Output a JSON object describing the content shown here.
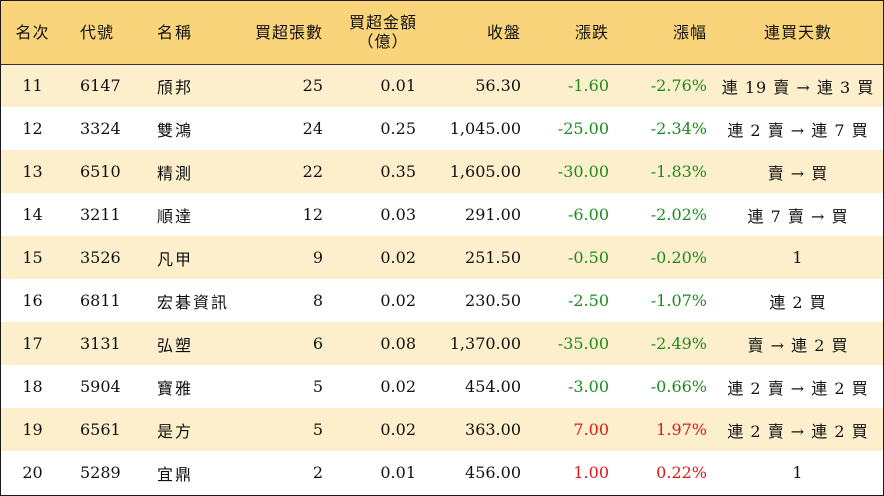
{
  "headers": {
    "rank": "名次",
    "code": "代號",
    "name": "名稱",
    "net_buy_lots": "買超張數",
    "net_buy_amount_line1": "買超金額",
    "net_buy_amount_line2": "（億）",
    "close": "收盤",
    "change": "漲跌",
    "change_pct": "漲幅",
    "consecutive_days": "連買天數"
  },
  "colors": {
    "header_bg": "#f9d47a",
    "odd_row_bg": "#fdefcc",
    "even_row_bg": "#ffffff",
    "down": "#1e8a1e",
    "up": "#e01818"
  },
  "rows": [
    {
      "rank": "11",
      "code": "6147",
      "name": "頎邦",
      "lots": "25",
      "amount": "0.01",
      "close": "56.30",
      "change": "-1.60",
      "pct": "-2.76%",
      "days": "連 19 賣 → 連 3 買",
      "dir": "down"
    },
    {
      "rank": "12",
      "code": "3324",
      "name": "雙鴻",
      "lots": "24",
      "amount": "0.25",
      "close": "1,045.00",
      "change": "-25.00",
      "pct": "-2.34%",
      "days": "連 2 賣 → 連 7 買",
      "dir": "down"
    },
    {
      "rank": "13",
      "code": "6510",
      "name": "精測",
      "lots": "22",
      "amount": "0.35",
      "close": "1,605.00",
      "change": "-30.00",
      "pct": "-1.83%",
      "days": "賣 → 買",
      "dir": "down"
    },
    {
      "rank": "14",
      "code": "3211",
      "name": "順達",
      "lots": "12",
      "amount": "0.03",
      "close": "291.00",
      "change": "-6.00",
      "pct": "-2.02%",
      "days": "連 7 賣 → 買",
      "dir": "down"
    },
    {
      "rank": "15",
      "code": "3526",
      "name": "凡甲",
      "lots": "9",
      "amount": "0.02",
      "close": "251.50",
      "change": "-0.50",
      "pct": "-0.20%",
      "days": "1",
      "dir": "down"
    },
    {
      "rank": "16",
      "code": "6811",
      "name": "宏碁資訊",
      "lots": "8",
      "amount": "0.02",
      "close": "230.50",
      "change": "-2.50",
      "pct": "-1.07%",
      "days": "連 2 買",
      "dir": "down"
    },
    {
      "rank": "17",
      "code": "3131",
      "name": "弘塑",
      "lots": "6",
      "amount": "0.08",
      "close": "1,370.00",
      "change": "-35.00",
      "pct": "-2.49%",
      "days": "賣 → 連 2 買",
      "dir": "down"
    },
    {
      "rank": "18",
      "code": "5904",
      "name": "寶雅",
      "lots": "5",
      "amount": "0.02",
      "close": "454.00",
      "change": "-3.00",
      "pct": "-0.66%",
      "days": "連 2 賣 → 連 2 買",
      "dir": "down"
    },
    {
      "rank": "19",
      "code": "6561",
      "name": "是方",
      "lots": "5",
      "amount": "0.02",
      "close": "363.00",
      "change": "7.00",
      "pct": "1.97%",
      "days": "連 2 賣 → 連 2 買",
      "dir": "up"
    },
    {
      "rank": "20",
      "code": "5289",
      "name": "宜鼎",
      "lots": "2",
      "amount": "0.01",
      "close": "456.00",
      "change": "1.00",
      "pct": "0.22%",
      "days": "1",
      "dir": "up"
    }
  ]
}
